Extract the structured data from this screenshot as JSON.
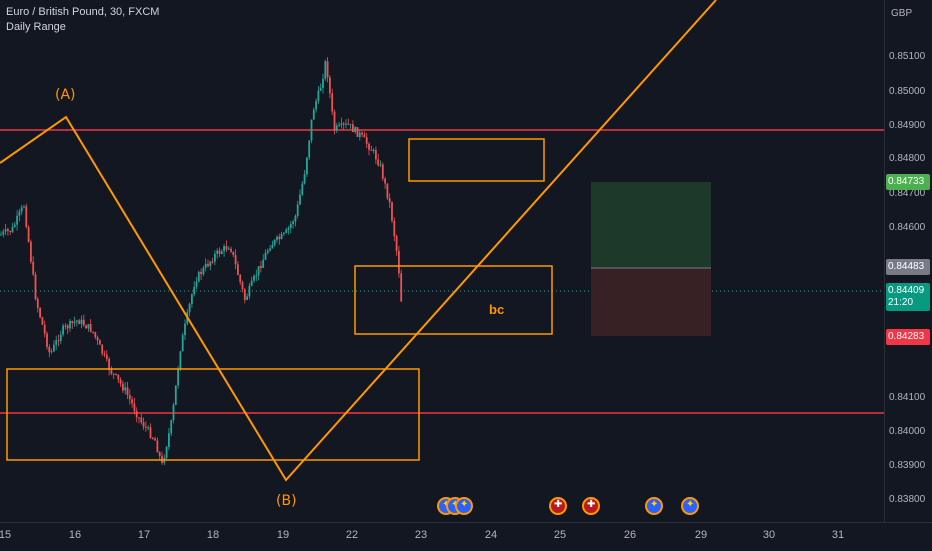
{
  "header": {
    "symbol_line": "Euro / British Pound, 30, FXCM",
    "indicator": "Daily Range"
  },
  "price_axis": {
    "currency": "GBP",
    "ticks": [
      "0.85100",
      "0.85000",
      "0.84900",
      "0.84800",
      "0.84700",
      "0.84600",
      "0.84100",
      "0.84000",
      "0.83900",
      "0.83800"
    ],
    "labels": {
      "target": "0.84733",
      "entry": "0.84483",
      "current_price": "0.84409",
      "countdown": "21:20",
      "stop": "0.84283"
    }
  },
  "time_axis": {
    "ticks": [
      "15",
      "16",
      "17",
      "18",
      "19",
      "22",
      "23",
      "24",
      "25",
      "26",
      "29",
      "30",
      "31"
    ]
  },
  "annotations": {
    "wave_a": "(A)",
    "wave_b": "(B)",
    "bc": "bc"
  },
  "colors": {
    "background": "#131722",
    "up_candle": "#26a69a",
    "down_candle": "#ef5350",
    "drawing": "#ff9800",
    "hline": "#f23645",
    "target_label": "#4caf50",
    "entry_label": "#787b86",
    "current_label": "#089981",
    "stop_label": "#f23645"
  },
  "event_icons": [
    "eu-flag-icon",
    "eu-flag-icon",
    "eu-flag-icon",
    "uk-flag-icon",
    "uk-flag-icon",
    "eu-flag-icon",
    "eu-flag-icon"
  ]
}
